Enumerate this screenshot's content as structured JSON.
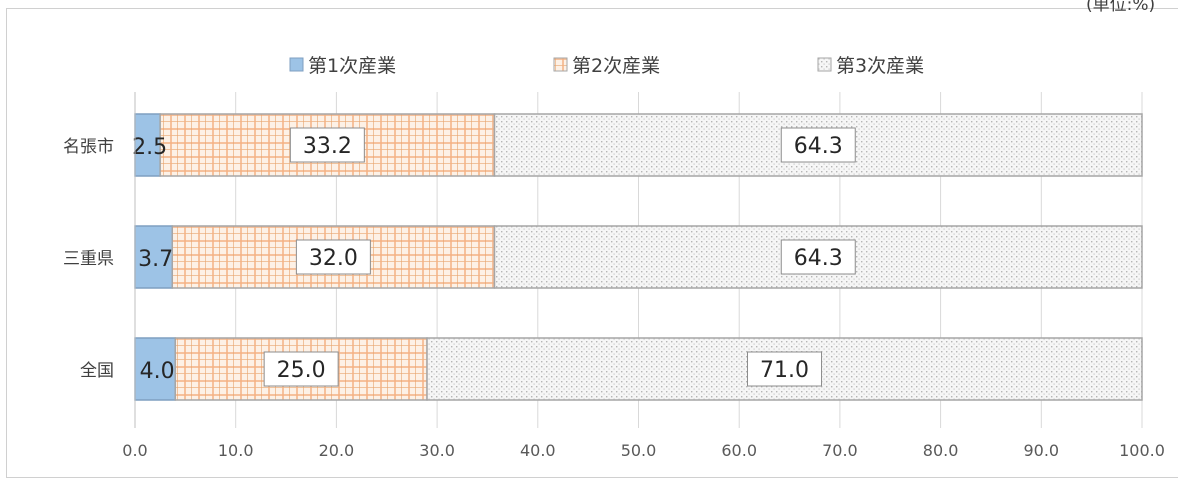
{
  "unit_note": "(単位:%)",
  "chart_data": {
    "type": "bar",
    "orientation": "horizontal",
    "stacked": true,
    "categories": [
      "名張市",
      "三重県",
      "全国"
    ],
    "series": [
      {
        "name": "第1次産業",
        "values": [
          2.5,
          3.7,
          4.0
        ],
        "color": "#9dc3e6",
        "pattern": "solid"
      },
      {
        "name": "第2次産業",
        "values": [
          33.2,
          32.0,
          25.0
        ],
        "color": "#f4b183",
        "pattern": "plaid"
      },
      {
        "name": "第3次産業",
        "values": [
          64.3,
          64.3,
          71.0
        ],
        "color": "#bfbfbf",
        "pattern": "dots"
      }
    ],
    "xlim": [
      0,
      100
    ],
    "xticks": [
      "0.0",
      "10.0",
      "20.0",
      "30.0",
      "40.0",
      "50.0",
      "60.0",
      "70.0",
      "80.0",
      "90.0",
      "100.0"
    ],
    "grid": true,
    "legend_position": "top",
    "data_labels": true
  }
}
